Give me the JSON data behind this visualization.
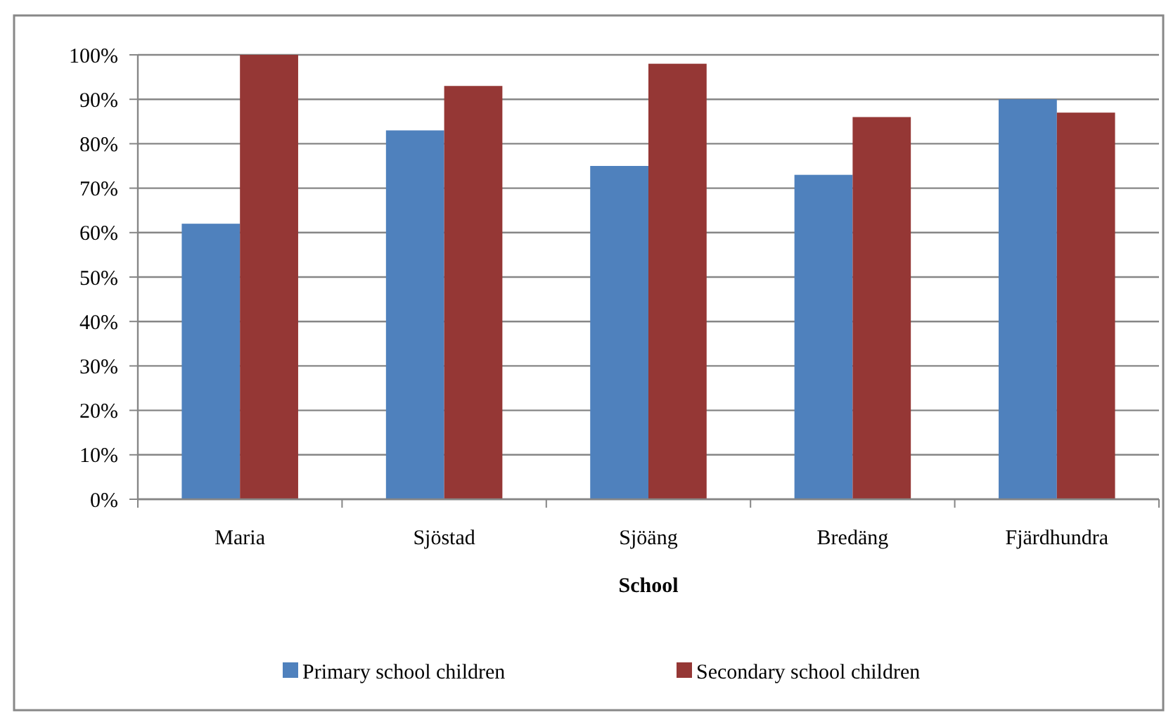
{
  "chart_data": {
    "type": "bar",
    "xlabel": "School",
    "categories": [
      "Maria",
      "Sjöstad",
      "Sjöäng",
      "Bredäng",
      "Fjärdhundra"
    ],
    "series": [
      {
        "name": "Primary school children",
        "color": "#4f81bd",
        "values": [
          62,
          83,
          75,
          73,
          90
        ]
      },
      {
        "name": "Secondary school children",
        "color": "#953735",
        "values": [
          100,
          93,
          98,
          86,
          87
        ]
      }
    ],
    "ylim": [
      0,
      100
    ],
    "yticks": [
      {
        "value": 0,
        "label": "0%"
      },
      {
        "value": 10,
        "label": "10%"
      },
      {
        "value": 20,
        "label": "20%"
      },
      {
        "value": 30,
        "label": "30%"
      },
      {
        "value": 40,
        "label": "40%"
      },
      {
        "value": 50,
        "label": "50%"
      },
      {
        "value": 60,
        "label": "60%"
      },
      {
        "value": 70,
        "label": "70%"
      },
      {
        "value": 80,
        "label": "80%"
      },
      {
        "value": 90,
        "label": "90%"
      },
      {
        "value": 100,
        "label": "100%"
      }
    ],
    "grid": "y",
    "legend": "bottom"
  }
}
